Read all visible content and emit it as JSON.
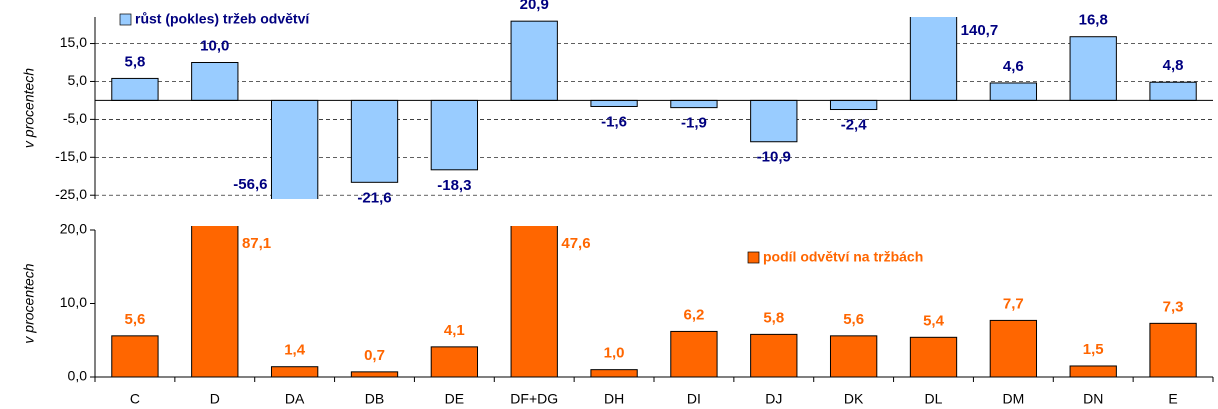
{
  "chart_data": [
    {
      "type": "bar",
      "y_label": "v procentech",
      "series": [
        {
          "name": "růst (pokles) tržeb odvětví",
          "color": "#99ccff",
          "label_color": "#000080",
          "values": [
            5.8,
            10.0,
            -56.6,
            -21.6,
            -18.3,
            20.9,
            -1.6,
            -1.9,
            -10.9,
            -2.4,
            140.7,
            4.6,
            16.8,
            4.8
          ],
          "value_labels": [
            "5,8",
            "10,0",
            "-56,6",
            "-21,6",
            "-18,3",
            "20,9",
            "-1,6",
            "-1,9",
            "-10,9",
            "-2,4",
            "140,7",
            "4,6",
            "16,8",
            "4,8"
          ]
        }
      ],
      "ylim": [
        -26,
        22
      ],
      "yticks": [
        {
          "value": 15,
          "label": "15,0"
        },
        {
          "value": 5,
          "label": "5,0"
        },
        {
          "value": -5,
          "label": "-5,0"
        },
        {
          "value": -15,
          "label": "-15,0"
        },
        {
          "value": -25,
          "label": "-25,0"
        }
      ],
      "grid": true
    },
    {
      "type": "bar",
      "y_label": "v procentech",
      "categories": [
        "C",
        "D",
        "DA",
        "DB",
        "DE",
        "DF+DG",
        "DH",
        "DI",
        "DJ",
        "DK",
        "DL",
        "DM",
        "DN",
        "E"
      ],
      "series": [
        {
          "name": "podíl odvětví na tržbách",
          "color": "#ff6600",
          "label_color": "#ff6600",
          "values": [
            5.6,
            87.1,
            1.4,
            0.7,
            4.1,
            47.6,
            1.0,
            6.2,
            5.8,
            5.6,
            5.4,
            7.7,
            1.5,
            7.3
          ],
          "value_labels": [
            "5,6",
            "87,1",
            "1,4",
            "0,7",
            "4,1",
            "47,6",
            "1,0",
            "6,2",
            "5,8",
            "5,6",
            "5,4",
            "7,7",
            "1,5",
            "7,3"
          ]
        }
      ],
      "ylim": [
        0,
        20
      ],
      "yticks": [
        {
          "value": 0,
          "label": "0,0"
        },
        {
          "value": 10,
          "label": "10,0"
        },
        {
          "value": 20,
          "label": "20,0"
        }
      ],
      "grid": false
    }
  ]
}
